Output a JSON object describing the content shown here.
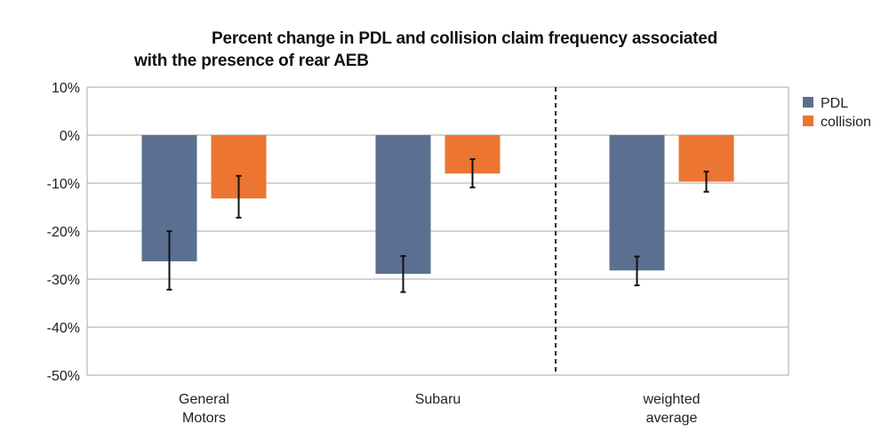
{
  "chart_data": {
    "type": "bar",
    "title_line1": "Percent change in PDL and collision claim frequency associated",
    "title_line2": "with the presence of rear AEB",
    "categories": [
      [
        "General",
        "Motors"
      ],
      [
        "Subaru"
      ],
      [
        "weighted",
        "average"
      ]
    ],
    "series": [
      {
        "name": "PDL",
        "color": "#5b7090",
        "values": [
          -26.3,
          -28.9,
          -28.2
        ],
        "ci_low": [
          -32.2,
          -32.7,
          -31.3
        ],
        "ci_high": [
          -20.0,
          -25.2,
          -25.3
        ]
      },
      {
        "name": "collision",
        "color": "#ec7532",
        "values": [
          -13.2,
          -8.0,
          -9.7
        ],
        "ci_low": [
          -17.2,
          -10.9,
          -11.8
        ],
        "ci_high": [
          -8.5,
          -5.0,
          -7.6
        ]
      }
    ],
    "y_ticks": [
      "10%",
      "0%",
      "-10%",
      "-20%",
      "-30%",
      "-40%",
      "-50%"
    ],
    "y_tick_values": [
      10,
      0,
      -10,
      -20,
      -30,
      -40,
      -50
    ],
    "ylim": [
      -50,
      10
    ],
    "grid": true,
    "legend_position": "top-right",
    "divider_between_categories": [
      2,
      3
    ]
  }
}
